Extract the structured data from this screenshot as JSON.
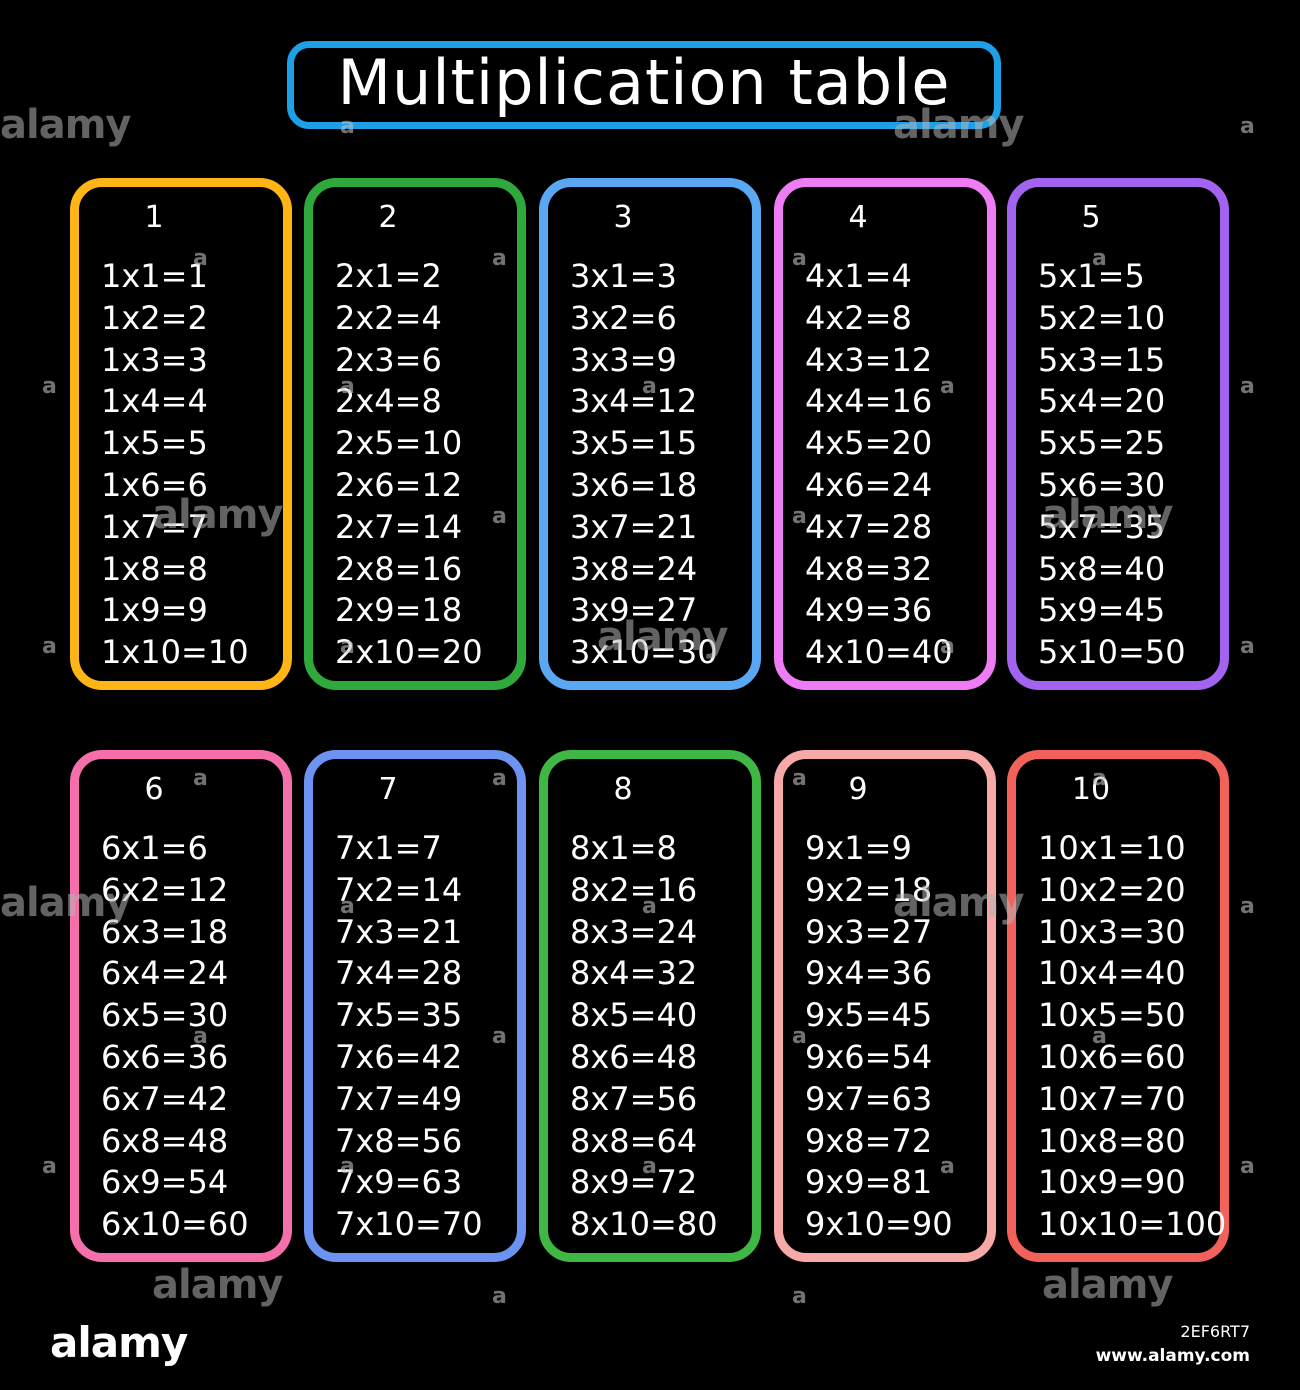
{
  "title": "Multiplication table",
  "colors": {
    "background": "#000000",
    "title_border": "#1ea0e6",
    "text": "#ffffff"
  },
  "tables": [
    {
      "header": "1",
      "color": "#ffb515",
      "rows": [
        "1x1=1",
        "1x2=2",
        "1x3=3",
        "1x4=4",
        "1x5=5",
        "1x6=6",
        "1x7=7",
        "1x8=8",
        "1x9=9",
        "1x10=10"
      ]
    },
    {
      "header": "2",
      "color": "#2fa93b",
      "rows": [
        "2x1=2",
        "2x2=4",
        "2x3=6",
        "2x4=8",
        "2x5=10",
        "2x6=12",
        "2x7=14",
        "2x8=16",
        "2x9=18",
        "2x10=20"
      ]
    },
    {
      "header": "3",
      "color": "#5aa8f4",
      "rows": [
        "3x1=3",
        "3x2=6",
        "3x3=9",
        "3x4=12",
        "3x5=15",
        "3x6=18",
        "3x7=21",
        "3x8=24",
        "3x9=27",
        "3x10=30"
      ]
    },
    {
      "header": "4",
      "color": "#ee7df5",
      "rows": [
        "4x1=4",
        "4x2=8",
        "4x3=12",
        "4x4=16",
        "4x5=20",
        "4x6=24",
        "4x7=28",
        "4x8=32",
        "4x9=36",
        "4x10=40"
      ]
    },
    {
      "header": "5",
      "color": "#a263f1",
      "rows": [
        "5x1=5",
        "5x2=10",
        "5x3=15",
        "5x4=20",
        "5x5=25",
        "5x6=30",
        "5x7=35",
        "5x8=40",
        "5x9=45",
        "5x10=50"
      ]
    },
    {
      "header": "6",
      "color": "#f56fab",
      "rows": [
        "6x1=6",
        "6x2=12",
        "6x3=18",
        "6x4=24",
        "6x5=30",
        "6x6=36",
        "6x7=42",
        "6x8=48",
        "6x9=54",
        "6x10=60"
      ]
    },
    {
      "header": "7",
      "color": "#6c93f2",
      "rows": [
        "7x1=7",
        "7x2=14",
        "7x3=21",
        "7x4=28",
        "7x5=35",
        "7x6=42",
        "7x7=49",
        "7x8=56",
        "7x9=63",
        "7x10=70"
      ]
    },
    {
      "header": "8",
      "color": "#3fb744",
      "rows": [
        "8x1=8",
        "8x2=16",
        "8x3=24",
        "8x4=32",
        "8x5=40",
        "8x6=48",
        "8x7=56",
        "8x8=64",
        "8x9=72",
        "8x10=80"
      ]
    },
    {
      "header": "9",
      "color": "#f7a9a8",
      "rows": [
        "9x1=9",
        "9x2=18",
        "9x3=27",
        "9x4=36",
        "9x5=45",
        "9x6=54",
        "9x7=63",
        "9x8=72",
        "9x9=81",
        "9x10=90"
      ]
    },
    {
      "header": "10",
      "color": "#f2625a",
      "rows": [
        "10x1=10",
        "10x2=20",
        "10x3=30",
        "10x4=40",
        "10x5=50",
        "10x6=60",
        "10x7=70",
        "10x8=80",
        "10x9=90",
        "10x10=100"
      ]
    }
  ],
  "footer": {
    "logo": "alamy",
    "image_id": "2EF6RT7",
    "url": "www.alamy.com"
  },
  "watermark": {
    "text": "alamy",
    "mark": "a"
  }
}
